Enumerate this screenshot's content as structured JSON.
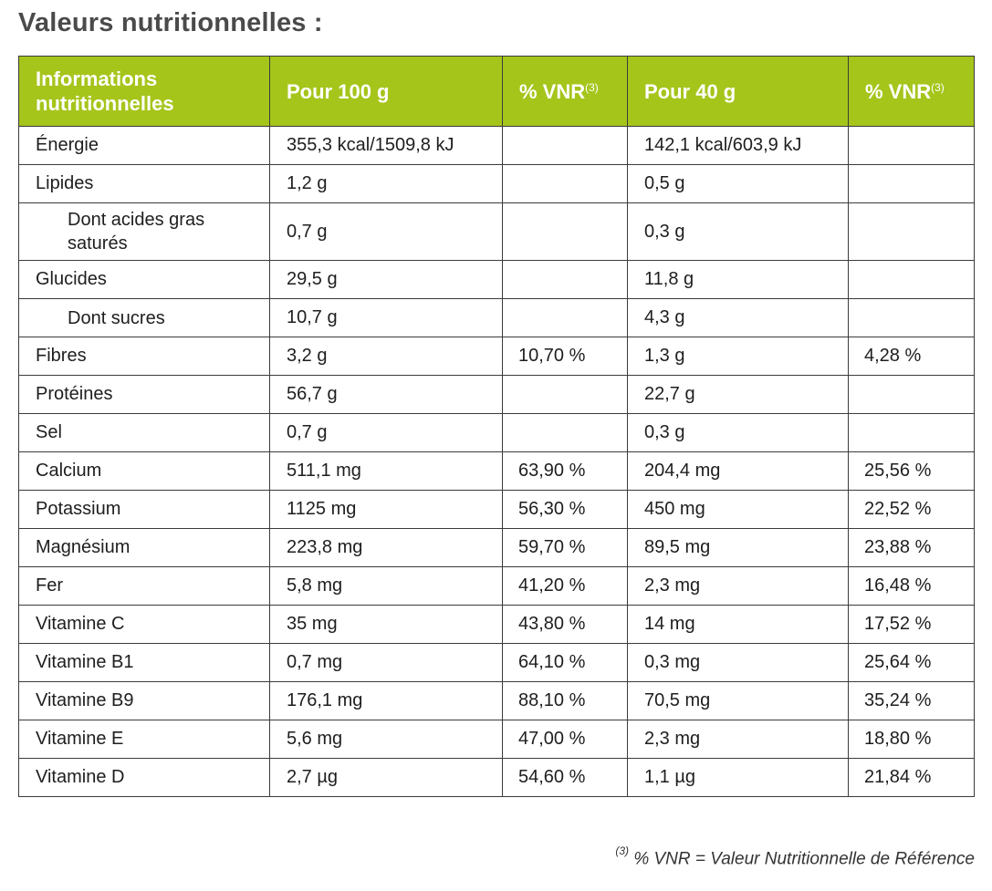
{
  "title": "Valeurs nutritionnelles :",
  "table": {
    "headers": {
      "info": "Informations nutritionnelles",
      "per100": "Pour 100 g",
      "vnr1": "% VNR",
      "vnr1_sup": "(3)",
      "per40": "Pour 40 g",
      "vnr2": "% VNR",
      "vnr2_sup": "(3)"
    },
    "rows": [
      {
        "label": "Énergie",
        "per100": "355,3 kcal/1509,8 kJ",
        "vnr100": "",
        "per40": "142,1 kcal/603,9 kJ",
        "vnr40": ""
      },
      {
        "label": "Lipides",
        "per100": "1,2 g",
        "vnr100": "",
        "per40": "0,5 g",
        "vnr40": ""
      },
      {
        "label": "Dont acides gras saturés",
        "per100": "0,7 g",
        "vnr100": "",
        "per40": "0,3 g",
        "vnr40": ""
      },
      {
        "label": "Glucides",
        "per100": "29,5 g",
        "vnr100": "",
        "per40": "11,8 g",
        "vnr40": ""
      },
      {
        "label": "Dont sucres",
        "per100": "10,7 g",
        "vnr100": "",
        "per40": "4,3 g",
        "vnr40": ""
      },
      {
        "label": "Fibres",
        "per100": "3,2 g",
        "vnr100": "10,70 %",
        "per40": "1,3 g",
        "vnr40": "4,28 %"
      },
      {
        "label": "Protéines",
        "per100": "56,7 g",
        "vnr100": "",
        "per40": "22,7 g",
        "vnr40": ""
      },
      {
        "label": "Sel",
        "per100": "0,7 g",
        "vnr100": "",
        "per40": "0,3 g",
        "vnr40": ""
      },
      {
        "label": "Calcium",
        "per100": "511,1 mg",
        "vnr100": "63,90 %",
        "per40": "204,4 mg",
        "vnr40": "25,56 %"
      },
      {
        "label": "Potassium",
        "per100": "1125 mg",
        "vnr100": "56,30 %",
        "per40": "450 mg",
        "vnr40": "22,52 %"
      },
      {
        "label": "Magnésium",
        "per100": "223,8 mg",
        "vnr100": "59,70 %",
        "per40": "89,5 mg",
        "vnr40": "23,88 %"
      },
      {
        "label": "Fer",
        "per100": "5,8 mg",
        "vnr100": "41,20 %",
        "per40": "2,3 mg",
        "vnr40": "16,48 %"
      },
      {
        "label": "Vitamine C",
        "per100": "35 mg",
        "vnr100": "43,80 %",
        "per40": "14 mg",
        "vnr40": "17,52 %"
      },
      {
        "label": "Vitamine B1",
        "per100": "0,7 mg",
        "vnr100": "64,10 %",
        "per40": "0,3 mg",
        "vnr40": "25,64 %"
      },
      {
        "label": "Vitamine B9",
        "per100": "176,1 mg",
        "vnr100": "88,10 %",
        "per40": "70,5 mg",
        "vnr40": "35,24 %"
      },
      {
        "label": "Vitamine E",
        "per100": "5,6 mg",
        "vnr100": "47,00 %",
        "per40": "2,3 mg",
        "vnr40": "18,80 %"
      },
      {
        "label": "Vitamine D",
        "per100": "2,7 µg",
        "vnr100": "54,60 %",
        "per40": "1,1 µg",
        "vnr40": "21,84 %"
      }
    ]
  },
  "footnote": {
    "sup": "(3)",
    "text": "% VNR = Valeur Nutritionnelle de Référence"
  },
  "colors": {
    "header_bg": "#a5c51b",
    "title": "#4a4a4a",
    "border": "#3b3b3b"
  }
}
